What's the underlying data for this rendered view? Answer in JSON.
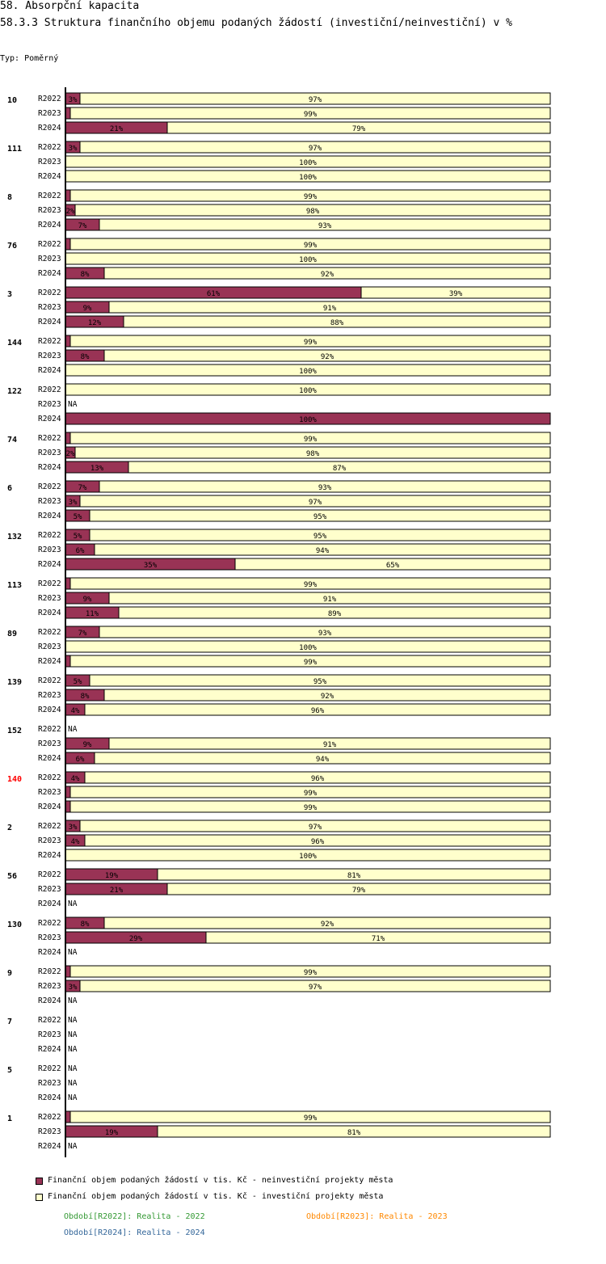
{
  "header": {
    "title": "58. Absorpční kapacita",
    "subtitle": "58.3.3 Struktura finančního objemu podaných žádostí (investiční/neinvestiční) v %",
    "type_label": "Typ: Poměrný"
  },
  "colors": {
    "non_investment": "#993355",
    "investment": "#ffffcc",
    "highlight_group": "#ff0000",
    "period_2022": "#339933",
    "period_2023": "#ff8800",
    "period_2024": "#336699"
  },
  "chart_data": {
    "type": "bar",
    "orientation": "horizontal",
    "stacked": true,
    "unit": "%",
    "xlim": [
      0,
      100
    ],
    "na_label": "NA",
    "series": [
      {
        "name": "Finanční objem podaných žádostí v tis. Kč - neinvestiční projekty města",
        "key": "non_investment"
      },
      {
        "name": "Finanční objem podaných žádostí v tis. Kč - investiční projekty města",
        "key": "investment"
      }
    ],
    "groups": [
      {
        "label": "10",
        "highlight": false,
        "rows": [
          {
            "period": "R2022",
            "values": [
              3,
              97
            ]
          },
          {
            "period": "R2023",
            "values": [
              1,
              99
            ]
          },
          {
            "period": "R2024",
            "values": [
              21,
              79
            ]
          }
        ]
      },
      {
        "label": "111",
        "highlight": false,
        "rows": [
          {
            "period": "R2022",
            "values": [
              3,
              97
            ]
          },
          {
            "period": "R2023",
            "values": [
              0,
              100
            ]
          },
          {
            "period": "R2024",
            "values": [
              0,
              100
            ]
          }
        ]
      },
      {
        "label": "8",
        "highlight": false,
        "rows": [
          {
            "period": "R2022",
            "values": [
              1,
              99
            ]
          },
          {
            "period": "R2023",
            "values": [
              2,
              98
            ]
          },
          {
            "period": "R2024",
            "values": [
              7,
              93
            ]
          }
        ]
      },
      {
        "label": "76",
        "highlight": false,
        "rows": [
          {
            "period": "R2022",
            "values": [
              1,
              99
            ]
          },
          {
            "period": "R2023",
            "values": [
              0,
              100
            ]
          },
          {
            "period": "R2024",
            "values": [
              8,
              92
            ]
          }
        ]
      },
      {
        "label": "3",
        "highlight": false,
        "rows": [
          {
            "period": "R2022",
            "values": [
              61,
              39
            ]
          },
          {
            "period": "R2023",
            "values": [
              9,
              91
            ]
          },
          {
            "period": "R2024",
            "values": [
              12,
              88
            ]
          }
        ]
      },
      {
        "label": "144",
        "highlight": false,
        "rows": [
          {
            "period": "R2022",
            "values": [
              1,
              99
            ]
          },
          {
            "period": "R2023",
            "values": [
              8,
              92
            ]
          },
          {
            "period": "R2024",
            "values": [
              0,
              100
            ]
          }
        ]
      },
      {
        "label": "122",
        "highlight": false,
        "rows": [
          {
            "period": "R2022",
            "values": [
              0,
              100
            ]
          },
          {
            "period": "R2023",
            "values": null
          },
          {
            "period": "R2024",
            "values": [
              100,
              0
            ]
          }
        ]
      },
      {
        "label": "74",
        "highlight": false,
        "rows": [
          {
            "period": "R2022",
            "values": [
              1,
              99
            ]
          },
          {
            "period": "R2023",
            "values": [
              2,
              98
            ]
          },
          {
            "period": "R2024",
            "values": [
              13,
              87
            ]
          }
        ]
      },
      {
        "label": "6",
        "highlight": false,
        "rows": [
          {
            "period": "R2022",
            "values": [
              7,
              93
            ]
          },
          {
            "period": "R2023",
            "values": [
              3,
              97
            ]
          },
          {
            "period": "R2024",
            "values": [
              5,
              95
            ]
          }
        ]
      },
      {
        "label": "132",
        "highlight": false,
        "rows": [
          {
            "period": "R2022",
            "values": [
              5,
              95
            ]
          },
          {
            "period": "R2023",
            "values": [
              6,
              94
            ]
          },
          {
            "period": "R2024",
            "values": [
              35,
              65
            ]
          }
        ]
      },
      {
        "label": "113",
        "highlight": false,
        "rows": [
          {
            "period": "R2022",
            "values": [
              1,
              99
            ]
          },
          {
            "period": "R2023",
            "values": [
              9,
              91
            ]
          },
          {
            "period": "R2024",
            "values": [
              11,
              89
            ]
          }
        ]
      },
      {
        "label": "89",
        "highlight": false,
        "rows": [
          {
            "period": "R2022",
            "values": [
              7,
              93
            ]
          },
          {
            "period": "R2023",
            "values": [
              0,
              100
            ]
          },
          {
            "period": "R2024",
            "values": [
              1,
              99
            ]
          }
        ]
      },
      {
        "label": "139",
        "highlight": false,
        "rows": [
          {
            "period": "R2022",
            "values": [
              5,
              95
            ]
          },
          {
            "period": "R2023",
            "values": [
              8,
              92
            ]
          },
          {
            "period": "R2024",
            "values": [
              4,
              96
            ]
          }
        ]
      },
      {
        "label": "152",
        "highlight": false,
        "rows": [
          {
            "period": "R2022",
            "values": null
          },
          {
            "period": "R2023",
            "values": [
              9,
              91
            ]
          },
          {
            "period": "R2024",
            "values": [
              6,
              94
            ]
          }
        ]
      },
      {
        "label": "140",
        "highlight": true,
        "rows": [
          {
            "period": "R2022",
            "values": [
              4,
              96
            ]
          },
          {
            "period": "R2023",
            "values": [
              1,
              99
            ]
          },
          {
            "period": "R2024",
            "values": [
              1,
              99
            ]
          }
        ]
      },
      {
        "label": "2",
        "highlight": false,
        "rows": [
          {
            "period": "R2022",
            "values": [
              3,
              97
            ]
          },
          {
            "period": "R2023",
            "values": [
              4,
              96
            ]
          },
          {
            "period": "R2024",
            "values": [
              0,
              100
            ]
          }
        ]
      },
      {
        "label": "56",
        "highlight": false,
        "rows": [
          {
            "period": "R2022",
            "values": [
              19,
              81
            ]
          },
          {
            "period": "R2023",
            "values": [
              21,
              79
            ]
          },
          {
            "period": "R2024",
            "values": null
          }
        ]
      },
      {
        "label": "130",
        "highlight": false,
        "rows": [
          {
            "period": "R2022",
            "values": [
              8,
              92
            ]
          },
          {
            "period": "R2023",
            "values": [
              29,
              71
            ]
          },
          {
            "period": "R2024",
            "values": null
          }
        ]
      },
      {
        "label": "9",
        "highlight": false,
        "rows": [
          {
            "period": "R2022",
            "values": [
              1,
              99
            ]
          },
          {
            "period": "R2023",
            "values": [
              3,
              97
            ]
          },
          {
            "period": "R2024",
            "values": null
          }
        ]
      },
      {
        "label": "7",
        "highlight": false,
        "rows": [
          {
            "period": "R2022",
            "values": null
          },
          {
            "period": "R2023",
            "values": null
          },
          {
            "period": "R2024",
            "values": null
          }
        ]
      },
      {
        "label": "5",
        "highlight": false,
        "rows": [
          {
            "period": "R2022",
            "values": null
          },
          {
            "period": "R2023",
            "values": null
          },
          {
            "period": "R2024",
            "values": null
          }
        ]
      },
      {
        "label": "1",
        "highlight": false,
        "rows": [
          {
            "period": "R2022",
            "values": [
              1,
              99
            ]
          },
          {
            "period": "R2023",
            "values": [
              19,
              81
            ]
          },
          {
            "period": "R2024",
            "values": null
          }
        ]
      }
    ]
  },
  "legend": {
    "items": [
      "Finanční objem podaných žádostí v tis. Kč - neinvestiční projekty města",
      "Finanční objem podaných žádostí v tis. Kč - investiční projekty města"
    ],
    "periods": {
      "p2022": "Období[R2022]: Realita - 2022",
      "p2023": "Období[R2023]: Realita - 2023",
      "p2024": "Období[R2024]: Realita - 2024"
    }
  }
}
